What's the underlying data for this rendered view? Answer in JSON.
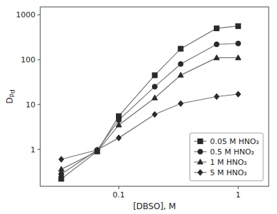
{
  "chart_data": {
    "type": "line",
    "title": "",
    "xlabel": "[DBSO], M",
    "ylabel": "DPd",
    "x": [
      0.033,
      0.066,
      0.1,
      0.2,
      0.33,
      0.66,
      1.0
    ],
    "series": [
      {
        "name": "0.05 M HNO₃",
        "marker": "square",
        "color": "#2a2a2a",
        "values": [
          0.22,
          0.9,
          5.5,
          45.0,
          175.0,
          500.0,
          560.0
        ]
      },
      {
        "name": "0.5 M HNO₃",
        "marker": "circle",
        "color": "#2a2a2a",
        "values": [
          0.28,
          0.97,
          4.5,
          25.0,
          80.0,
          220.0,
          230.0
        ]
      },
      {
        "name": "1 M HNO₃",
        "marker": "triangle",
        "color": "#2a2a2a",
        "values": [
          0.36,
          0.9,
          3.5,
          14.0,
          45.0,
          110.0,
          110.0
        ]
      },
      {
        "name": "5 M HNO₃",
        "marker": "diamond",
        "color": "#2a2a2a",
        "values": [
          0.6,
          0.97,
          1.8,
          6.0,
          10.5,
          15.0,
          17.0
        ]
      }
    ],
    "color": "#707070",
    "xlim": [
      0.022,
      1.8
    ],
    "ylim": [
      0.15,
      1500
    ],
    "xticks": [
      0.1,
      1
    ],
    "yticks": [
      1,
      10,
      100,
      1000
    ],
    "log": true,
    "grid": false,
    "legend": "lower right"
  }
}
